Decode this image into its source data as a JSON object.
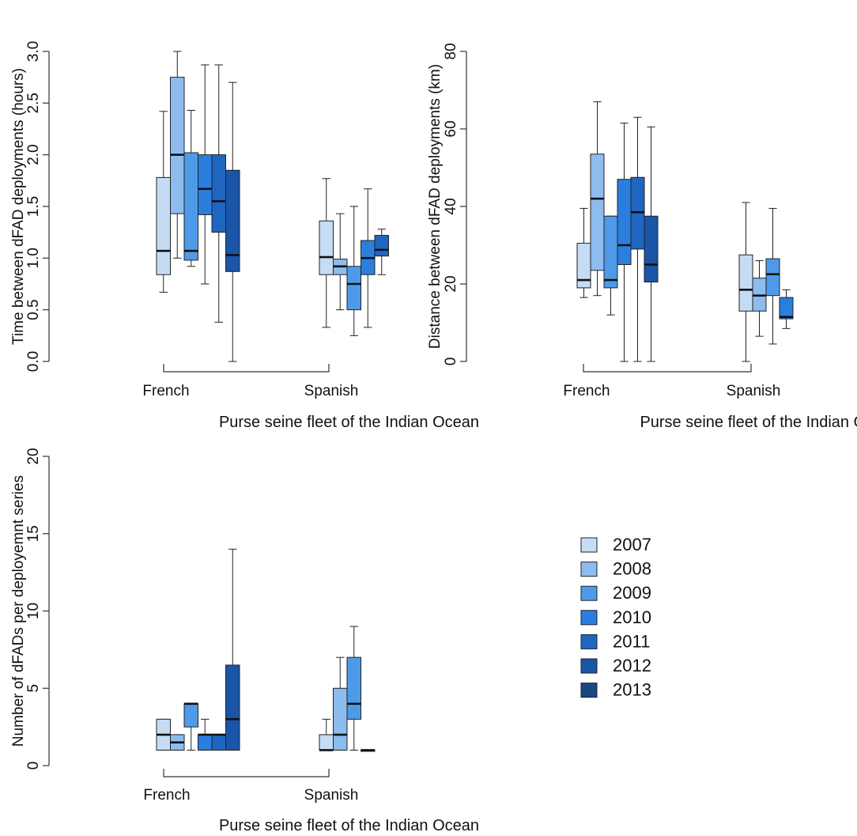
{
  "legend": {
    "position": "right",
    "entries": [
      {
        "label": "2007",
        "color": "#c6dcf5"
      },
      {
        "label": "2008",
        "color": "#8dbcef"
      },
      {
        "label": "2009",
        "color": "#4d9be8"
      },
      {
        "label": "2010",
        "color": "#2a7fde"
      },
      {
        "label": "2011",
        "color": "#1f66c2"
      },
      {
        "label": "2012",
        "color": "#1a55a8"
      },
      {
        "label": "2013",
        "color": "#1a4783"
      }
    ]
  },
  "chart_data": [
    {
      "type": "boxplot",
      "ylabel": "Time between dFAD deployments (hours)",
      "xlabel": "Purse seine fleet of the Indian Ocean",
      "ylim": [
        0,
        3
      ],
      "yticks": [
        "0.0",
        "0.5",
        "1.0",
        "1.5",
        "2.0",
        "2.5",
        "3.0"
      ],
      "categories": [
        "French",
        "Spanish"
      ],
      "series": [
        {
          "name": "2007",
          "values": [
            {
              "whisker_low": 0.67,
              "q1": 0.84,
              "median": 1.07,
              "q3": 1.78,
              "whisker_high": 2.42
            },
            {
              "whisker_low": 0.33,
              "q1": 0.84,
              "median": 1.01,
              "q3": 1.36,
              "whisker_high": 1.77
            }
          ]
        },
        {
          "name": "2008",
          "values": [
            {
              "whisker_low": 1.0,
              "q1": 1.43,
              "median": 2.0,
              "q3": 2.75,
              "whisker_high": 3.0
            },
            {
              "whisker_low": 0.5,
              "q1": 0.84,
              "median": 0.92,
              "q3": 0.99,
              "whisker_high": 1.43
            }
          ]
        },
        {
          "name": "2009",
          "values": [
            {
              "whisker_low": 0.92,
              "q1": 0.98,
              "median": 1.07,
              "q3": 2.02,
              "whisker_high": 2.43
            },
            {
              "whisker_low": 0.25,
              "q1": 0.5,
              "median": 0.75,
              "q3": 0.92,
              "whisker_high": 1.5
            }
          ]
        },
        {
          "name": "2010",
          "values": [
            {
              "whisker_low": 0.75,
              "q1": 1.42,
              "median": 1.67,
              "q3": 2.0,
              "whisker_high": 2.87
            },
            {
              "whisker_low": 0.33,
              "q1": 0.84,
              "median": 1.0,
              "q3": 1.17,
              "whisker_high": 1.67
            }
          ]
        },
        {
          "name": "2011",
          "values": [
            {
              "whisker_low": 0.38,
              "q1": 1.25,
              "median": 1.55,
              "q3": 2.0,
              "whisker_high": 2.87
            },
            {
              "whisker_low": 0.84,
              "q1": 1.02,
              "median": 1.08,
              "q3": 1.22,
              "whisker_high": 1.28
            }
          ]
        },
        {
          "name": "2012",
          "values": [
            {
              "whisker_low": 0.0,
              "q1": 0.87,
              "median": 1.03,
              "q3": 1.85,
              "whisker_high": 2.7
            },
            null
          ]
        }
      ]
    },
    {
      "type": "boxplot",
      "ylabel": "Distance between dFAD deployments (km)",
      "xlabel": "Purse seine fleet of the Indian Ocean",
      "ylim": [
        0,
        80
      ],
      "yticks": [
        "0",
        "20",
        "40",
        "60",
        "80"
      ],
      "categories": [
        "French",
        "Spanish"
      ],
      "series": [
        {
          "name": "2007",
          "values": [
            {
              "whisker_low": 16.5,
              "q1": 19,
              "median": 21,
              "q3": 30.5,
              "whisker_high": 39.5
            },
            {
              "whisker_low": 0,
              "q1": 13,
              "median": 18.5,
              "q3": 27.5,
              "whisker_high": 41
            }
          ]
        },
        {
          "name": "2008",
          "values": [
            {
              "whisker_low": 17,
              "q1": 23.5,
              "median": 42,
              "q3": 53.5,
              "whisker_high": 67
            },
            {
              "whisker_low": 6.5,
              "q1": 13,
              "median": 17,
              "q3": 21.5,
              "whisker_high": 26
            }
          ]
        },
        {
          "name": "2009",
          "values": [
            {
              "whisker_low": 12,
              "q1": 19,
              "median": 21,
              "q3": 37.5,
              "whisker_high": 37.5
            },
            {
              "whisker_low": 4.5,
              "q1": 17,
              "median": 22.5,
              "q3": 26.5,
              "whisker_high": 39.5
            }
          ]
        },
        {
          "name": "2010",
          "values": [
            {
              "whisker_low": 0,
              "q1": 25,
              "median": 30,
              "q3": 47,
              "whisker_high": 61.5
            },
            {
              "whisker_low": 8.5,
              "q1": 11,
              "median": 11.5,
              "q3": 16.5,
              "whisker_high": 18.5
            }
          ]
        },
        {
          "name": "2011",
          "values": [
            {
              "whisker_low": 0,
              "q1": 29,
              "median": 38.5,
              "q3": 47.5,
              "whisker_high": 63
            },
            null
          ]
        },
        {
          "name": "2012",
          "values": [
            {
              "whisker_low": 0,
              "q1": 20.5,
              "median": 25,
              "q3": 37.5,
              "whisker_high": 60.5
            },
            null
          ]
        }
      ]
    },
    {
      "type": "boxplot",
      "ylabel": "Number of dFADs per deployemnt series",
      "xlabel": "Purse seine fleet of the Indian Ocean",
      "ylim": [
        0,
        20
      ],
      "yticks": [
        "0",
        "5",
        "10",
        "15",
        "20"
      ],
      "categories": [
        "French",
        "Spanish"
      ],
      "series": [
        {
          "name": "2007",
          "values": [
            {
              "whisker_low": 1,
              "q1": 1,
              "median": 2,
              "q3": 3,
              "whisker_high": 3
            },
            {
              "whisker_low": 1,
              "q1": 1,
              "median": 1,
              "q3": 2,
              "whisker_high": 3
            }
          ]
        },
        {
          "name": "2008",
          "values": [
            {
              "whisker_low": 1,
              "q1": 1,
              "median": 1.5,
              "q3": 2,
              "whisker_high": 2
            },
            {
              "whisker_low": 1,
              "q1": 1,
              "median": 2,
              "q3": 5,
              "whisker_high": 7
            }
          ]
        },
        {
          "name": "2009",
          "values": [
            {
              "whisker_low": 1,
              "q1": 2.5,
              "median": 4,
              "q3": 4,
              "whisker_high": 4
            },
            {
              "whisker_low": 1,
              "q1": 3,
              "median": 4,
              "q3": 7,
              "whisker_high": 9
            }
          ]
        },
        {
          "name": "2010",
          "values": [
            {
              "whisker_low": 1,
              "q1": 1,
              "median": 2,
              "q3": 2,
              "whisker_high": 3
            },
            {
              "whisker_low": 1,
              "q1": 1,
              "median": 1,
              "q3": 1,
              "whisker_high": 1
            }
          ]
        },
        {
          "name": "2011",
          "values": [
            {
              "whisker_low": 1,
              "q1": 1,
              "median": 2,
              "q3": 2,
              "whisker_high": 2
            },
            null
          ]
        },
        {
          "name": "2012",
          "values": [
            {
              "whisker_low": 1,
              "q1": 1,
              "median": 3,
              "q3": 6.5,
              "whisker_high": 14
            },
            null
          ]
        }
      ]
    }
  ]
}
